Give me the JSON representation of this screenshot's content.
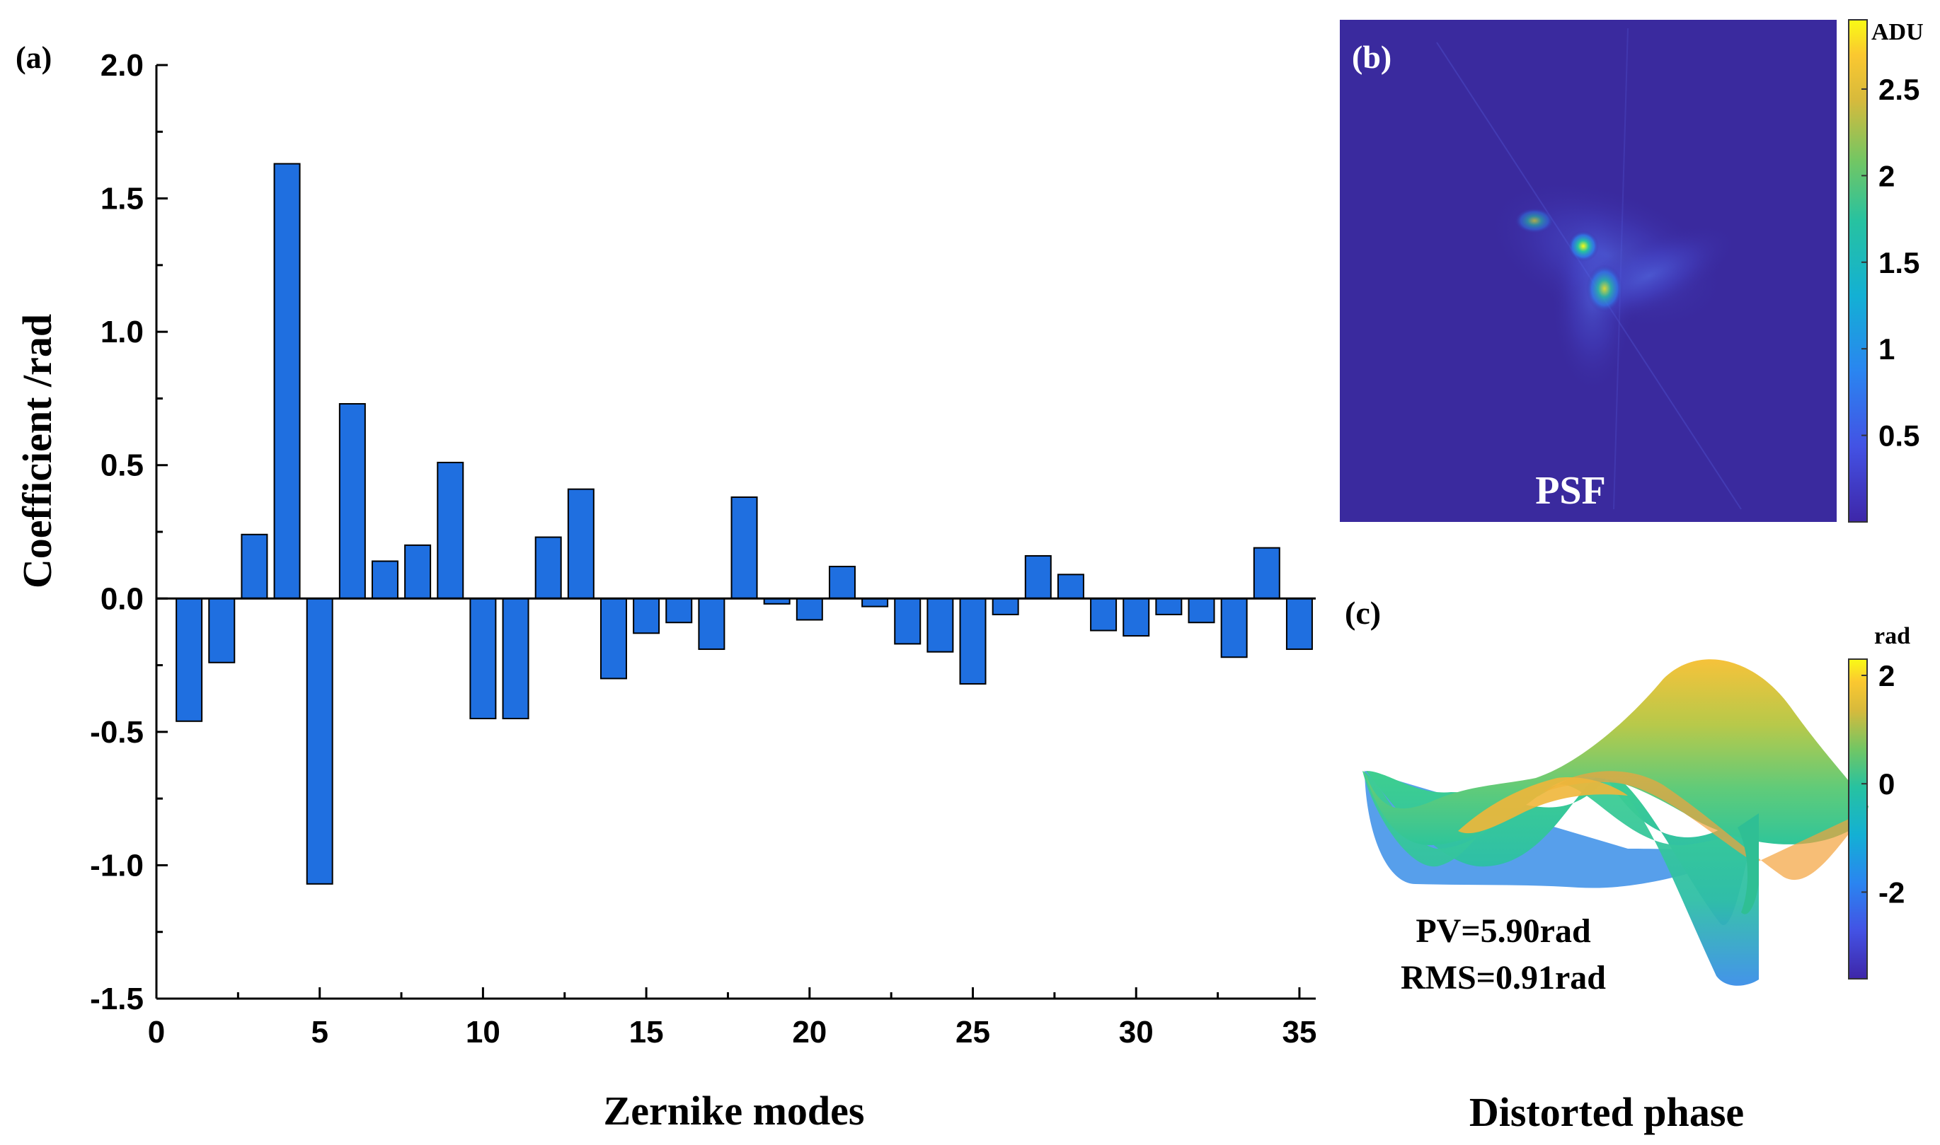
{
  "panel_a": {
    "label": "(a)",
    "chart_data": {
      "type": "bar",
      "title": "",
      "xlabel": "Zernike modes",
      "ylabel": "Coefficient  /rad",
      "xlim": [
        0,
        35.5
      ],
      "ylim": [
        -1.5,
        2.0
      ],
      "xticks": [
        0,
        5,
        10,
        15,
        20,
        25,
        30,
        35
      ],
      "xtick_labels": [
        "0",
        "5",
        "10",
        "15",
        "20",
        "25",
        "30",
        "35"
      ],
      "yticks": [
        2.0,
        1.5,
        1.0,
        0.5,
        0.0,
        -0.5,
        -1.0,
        -1.5
      ],
      "ytick_labels": [
        "2.0",
        "1.5",
        "1.0",
        "0.5",
        "0.0",
        "-0.5",
        "-1.0",
        "-1.5"
      ],
      "x": [
        1,
        2,
        3,
        4,
        5,
        6,
        7,
        8,
        9,
        10,
        11,
        12,
        13,
        14,
        15,
        16,
        17,
        18,
        19,
        20,
        21,
        22,
        23,
        24,
        25,
        26,
        27,
        28,
        29,
        30,
        31,
        32,
        33,
        34,
        35
      ],
      "values": [
        -0.46,
        -0.24,
        0.24,
        1.63,
        -1.07,
        0.73,
        0.14,
        0.2,
        0.51,
        -0.45,
        -0.45,
        0.23,
        0.41,
        -0.3,
        -0.13,
        -0.09,
        -0.19,
        0.38,
        -0.02,
        -0.08,
        0.12,
        -0.03,
        -0.17,
        -0.2,
        -0.32,
        -0.06,
        0.16,
        0.09,
        -0.12,
        -0.14,
        -0.06,
        -0.09,
        -0.22,
        0.19,
        -0.19
      ],
      "bar_color": "#1f6fe0",
      "grid": false
    }
  },
  "panel_b": {
    "label": "(b)",
    "caption": "PSF",
    "colorbar": {
      "unit": "ADU",
      "ticks": [
        "2.5",
        "2",
        "1.5",
        "1",
        "0.5"
      ],
      "tick_values": [
        2.5,
        2.0,
        1.5,
        1.0,
        0.5
      ],
      "range": [
        0,
        2.9
      ]
    },
    "background_color": "#3a2a9e"
  },
  "panel_c": {
    "label": "(c)",
    "pv_text": "PV=5.90rad",
    "rms_text": "RMS=0.91rad",
    "caption": "Distorted phase",
    "colorbar": {
      "unit": "rad",
      "ticks": [
        "2",
        "0",
        "-2"
      ],
      "tick_values": [
        2,
        0,
        -2
      ],
      "range": [
        -3.6,
        2.3
      ]
    }
  }
}
